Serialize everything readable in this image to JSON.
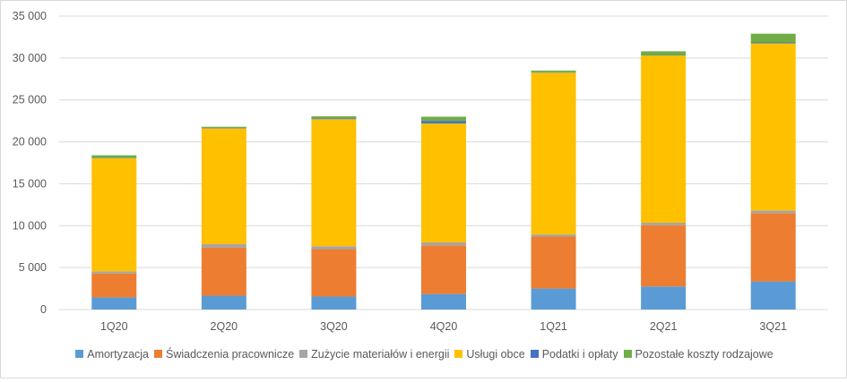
{
  "chart_data": {
    "type": "bar",
    "stacked": true,
    "categories": [
      "1Q20",
      "2Q20",
      "3Q20",
      "4Q20",
      "1Q21",
      "2Q21",
      "3Q21"
    ],
    "ylim": [
      0,
      35000
    ],
    "yticks": [
      0,
      5000,
      10000,
      15000,
      20000,
      25000,
      30000,
      35000
    ],
    "ytick_labels": [
      "0",
      "5 000",
      "10 000",
      "15 000",
      "20 000",
      "25 000",
      "30 000",
      "35 000"
    ],
    "grid": true,
    "legend_position": "bottom",
    "series": [
      {
        "name": "Amortyzacja",
        "color": "#5b9bd5",
        "values": [
          1450,
          1650,
          1550,
          1850,
          2500,
          2750,
          3350
        ]
      },
      {
        "name": "Świadczenia pracownicze",
        "color": "#ed7d31",
        "values": [
          2850,
          5750,
          5650,
          5800,
          6200,
          7300,
          8150
        ]
      },
      {
        "name": "Zużycie materiałów i energii",
        "color": "#a5a5a5",
        "values": [
          250,
          400,
          350,
          350,
          250,
          300,
          300
        ]
      },
      {
        "name": "Usługi obce",
        "color": "#ffc000",
        "values": [
          13500,
          13800,
          15150,
          14200,
          19300,
          19950,
          19950
        ]
      },
      {
        "name": "Podatki i opłaty",
        "color": "#4472c4",
        "values": [
          50,
          50,
          100,
          300,
          50,
          50,
          100
        ]
      },
      {
        "name": "Pozostałe koszty rodzajowe",
        "color": "#70ad47",
        "values": [
          300,
          150,
          250,
          500,
          200,
          450,
          1050
        ]
      }
    ]
  }
}
